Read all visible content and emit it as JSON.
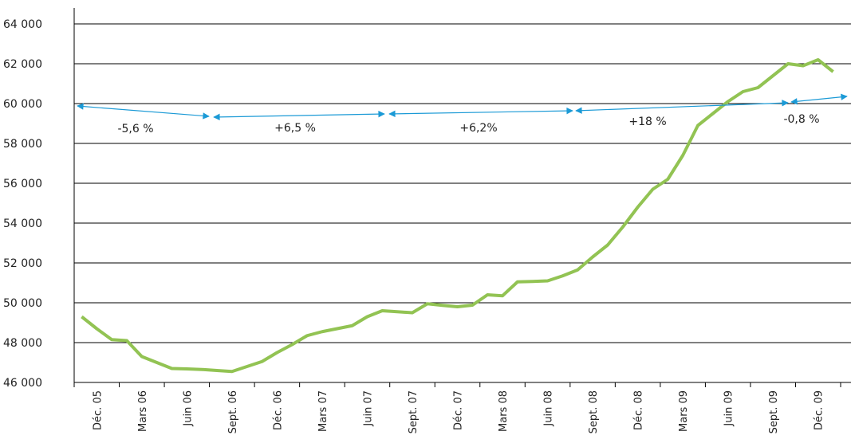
{
  "chart_data": {
    "type": "line",
    "categories": [
      null,
      "Déc. 05",
      null,
      null,
      "Mars 06",
      null,
      null,
      "Juin 06",
      null,
      null,
      "Sept. 06",
      null,
      null,
      "Déc. 06",
      null,
      null,
      "Mars  07",
      null,
      null,
      "Juin 07",
      null,
      null,
      "Sept. 07",
      null,
      null,
      "Déc. 07",
      null,
      null,
      "Mars 08",
      null,
      null,
      "Juin 08",
      null,
      null,
      "Sept. 08",
      null,
      null,
      "Déc. 08",
      null,
      null,
      "Mars  09",
      null,
      null,
      "Juin 09",
      null,
      null,
      "Sept. 09",
      null,
      null,
      "Déc. 09",
      null
    ],
    "series": [
      {
        "color": "#92c353",
        "values": [
          49300,
          48700,
          48150,
          48100,
          47300,
          47000,
          46700,
          46680,
          46650,
          46600,
          46550,
          46800,
          47050,
          47500,
          47900,
          48350,
          48550,
          48700,
          48850,
          49300,
          49600,
          49550,
          49500,
          49950,
          49870,
          49800,
          49880,
          50400,
          50350,
          51050,
          51070,
          51100,
          51350,
          51650,
          52300,
          52900,
          53800,
          54800,
          55700,
          56200,
          57400,
          58900,
          59500,
          60100,
          60600,
          60800,
          61400,
          62000,
          61900,
          62200,
          61600
        ]
      }
    ],
    "ylim": [
      46000,
      64000
    ],
    "yticks": [
      {
        "value": 46000,
        "label": "46 000"
      },
      {
        "value": 48000,
        "label": "48 000"
      },
      {
        "value": 50000,
        "label": "50 000"
      },
      {
        "value": 52000,
        "label": "52 000"
      },
      {
        "value": 54000,
        "label": "54 000"
      },
      {
        "value": 56000,
        "label": "56 000"
      },
      {
        "value": 58000,
        "label": "58 000"
      },
      {
        "value": 60000,
        "label": "60 000"
      },
      {
        "value": 62000,
        "label": "62 000"
      },
      {
        "value": 64000,
        "label": "64 000"
      }
    ],
    "grid": true,
    "annotation_color": "#1b9ad6",
    "annotations": [
      "-5,6 %",
      "+6,5 %",
      "+6,2%",
      "+18 %",
      "-0,8 %"
    ]
  }
}
